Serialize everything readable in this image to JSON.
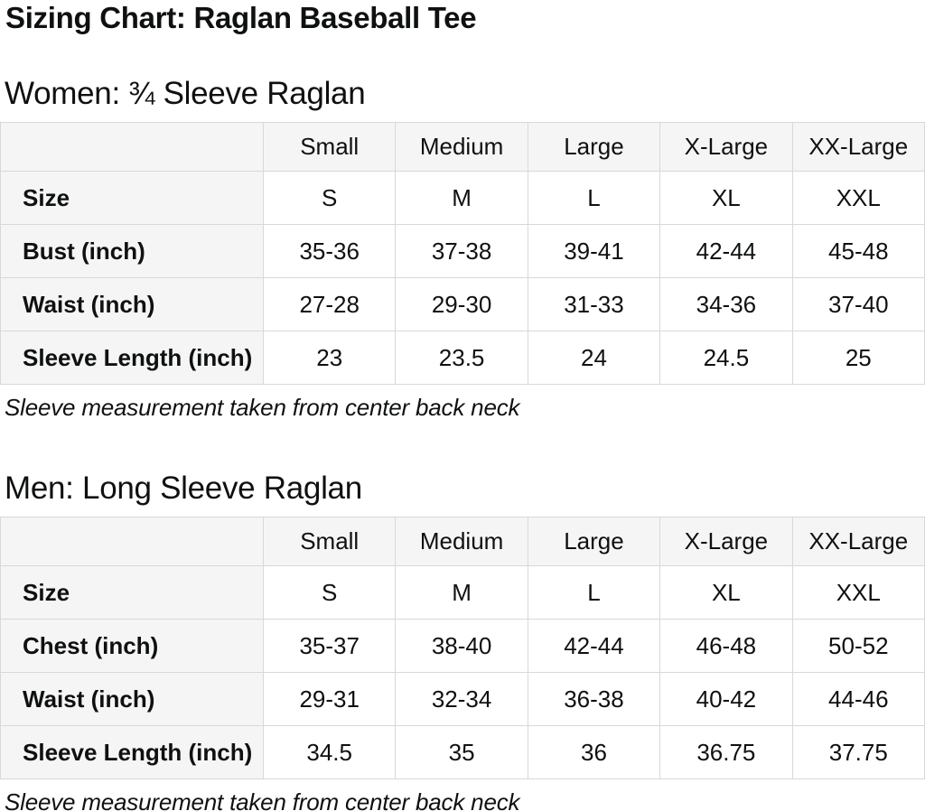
{
  "page": {
    "title": "Sizing Chart: Raglan Baseball Tee"
  },
  "colors": {
    "text": "#0f1111",
    "table_border": "#d8d8d8",
    "header_cell_bg": "#f5f5f5",
    "data_cell_bg": "#ffffff"
  },
  "sections": [
    {
      "heading": "Women: ¾ Sleeve Raglan",
      "columns": [
        "",
        "Small",
        "Medium",
        "Large",
        "X-Large",
        "XX-Large"
      ],
      "rows": [
        {
          "label": "Size",
          "values": [
            "S",
            "M",
            "L",
            "XL",
            "XXL"
          ]
        },
        {
          "label": "Bust (inch)",
          "values": [
            "35-36",
            "37-38",
            "39-41",
            "42-44",
            "45-48"
          ]
        },
        {
          "label": "Waist (inch)",
          "values": [
            "27-28",
            "29-30",
            "31-33",
            "34-36",
            "37-40"
          ]
        },
        {
          "label": "Sleeve Length (inch)",
          "values": [
            "23",
            "23.5",
            "24",
            "24.5",
            "25"
          ]
        }
      ],
      "note": "Sleeve measurement taken from center back neck"
    },
    {
      "heading": "Men: Long Sleeve Raglan",
      "columns": [
        "",
        "Small",
        "Medium",
        "Large",
        "X-Large",
        "XX-Large"
      ],
      "rows": [
        {
          "label": "Size",
          "values": [
            "S",
            "M",
            "L",
            "XL",
            "XXL"
          ]
        },
        {
          "label": "Chest (inch)",
          "values": [
            "35-37",
            "38-40",
            "42-44",
            "46-48",
            "50-52"
          ]
        },
        {
          "label": "Waist (inch)",
          "values": [
            "29-31",
            "32-34",
            "36-38",
            "40-42",
            "44-46"
          ]
        },
        {
          "label": "Sleeve Length (inch)",
          "values": [
            "34.5",
            "35",
            "36",
            "36.75",
            "37.75"
          ]
        }
      ],
      "note": "Sleeve measurement taken from center back neck"
    }
  ]
}
